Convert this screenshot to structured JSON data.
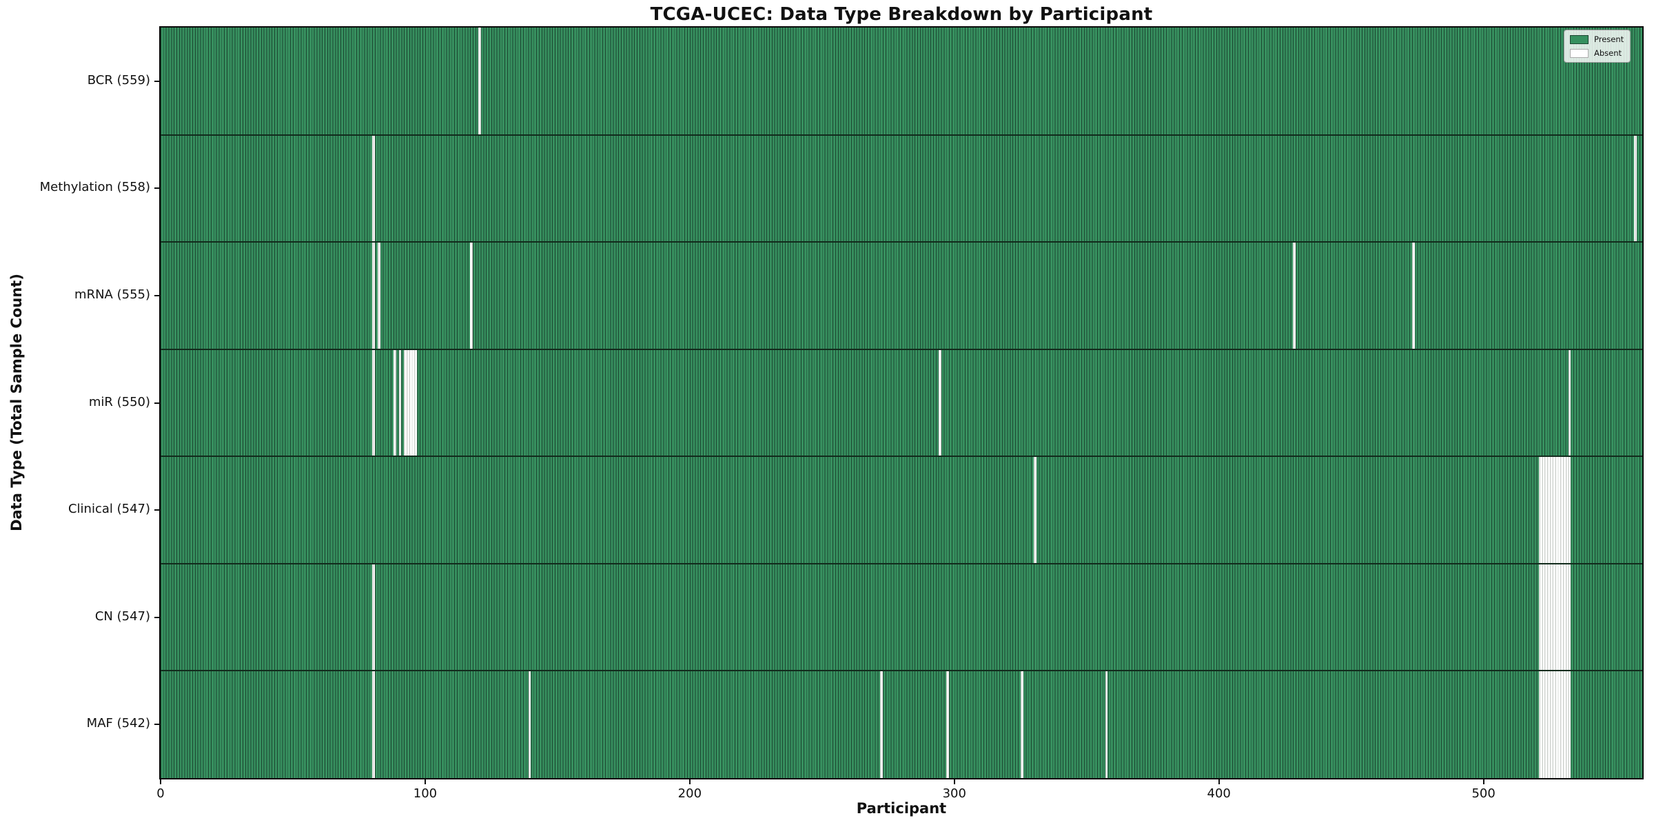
{
  "title": "TCGA-UCEC: Data Type Breakdown by Participant",
  "chart_data": {
    "type": "heatmap",
    "title": "TCGA-UCEC: Data Type Breakdown by Participant",
    "xlabel": "Participant",
    "ylabel": "Data Type (Total Sample Count)",
    "x_ticks": [
      0,
      100,
      200,
      300,
      400,
      500
    ],
    "xlim": [
      0,
      560
    ],
    "n_participants": 560,
    "grid": false,
    "legend_position": "upper right",
    "legend": [
      {
        "label": "Present",
        "color": "#37905f"
      },
      {
        "label": "Absent",
        "color": "#ffffff"
      }
    ],
    "colors": {
      "present_fill": "#37905f",
      "present_edge": "#1b4530",
      "absent_fill": "#ffffff",
      "absent_edge": "#b9beb9",
      "divider": "#122b1c",
      "spine": "#0a0a0a"
    },
    "rows": [
      {
        "label": "BCR (559)",
        "data_type": "BCR",
        "present_count": 559,
        "absent_participants": [
          120
        ]
      },
      {
        "label": "Methylation (558)",
        "data_type": "Methylation",
        "present_count": 558,
        "absent_participants": [
          80,
          557
        ]
      },
      {
        "label": "mRNA (555)",
        "data_type": "mRNA",
        "present_count": 555,
        "absent_participants": [
          80,
          82,
          117,
          428,
          473
        ]
      },
      {
        "label": "miR (550)",
        "data_type": "miR",
        "present_count": 550,
        "absent_participants": [
          80,
          88,
          90,
          92,
          93,
          94,
          95,
          96,
          294,
          532
        ]
      },
      {
        "label": "Clinical (547)",
        "data_type": "Clinical",
        "present_count": 547,
        "absent_participants": [
          330,
          521,
          522,
          523,
          524,
          525,
          526,
          527,
          528,
          529,
          530,
          531,
          532
        ]
      },
      {
        "label": "CN (547)",
        "data_type": "CN",
        "present_count": 547,
        "absent_participants": [
          80,
          521,
          522,
          523,
          524,
          525,
          526,
          527,
          528,
          529,
          530,
          531,
          532
        ]
      },
      {
        "label": "MAF (542)",
        "data_type": "MAF",
        "present_count": 542,
        "absent_participants": [
          80,
          139,
          272,
          297,
          325,
          357,
          521,
          522,
          523,
          524,
          525,
          526,
          527,
          528,
          529,
          530,
          531,
          532
        ]
      }
    ]
  }
}
